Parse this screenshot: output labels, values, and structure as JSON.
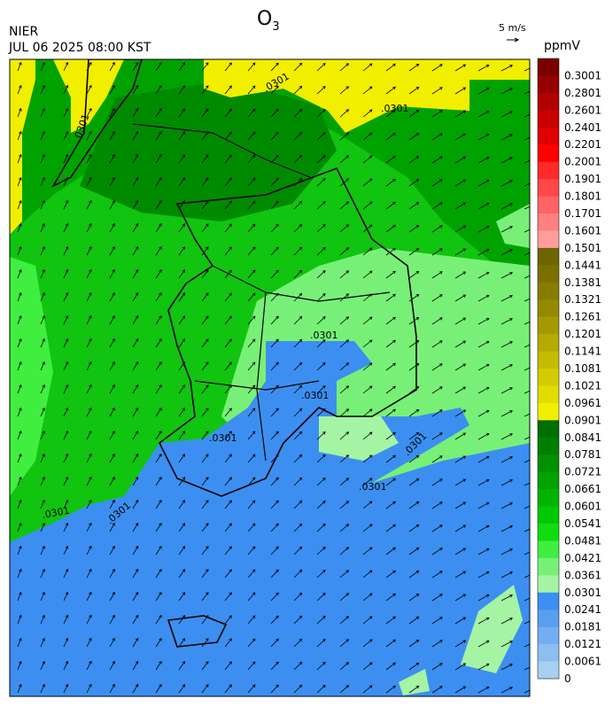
{
  "header": {
    "title_main": "O",
    "title_sub": "3",
    "source": "NIER",
    "datetime": "JUL 06 2025 08:00 KST"
  },
  "wind_scale": {
    "label": "5 m/s"
  },
  "contour_labels": [
    ".0301",
    ".0301",
    ".0301",
    ".0301",
    ".0301",
    ".0301",
    ".0301",
    ".0301",
    ".0301",
    ".0301"
  ],
  "colorbar": {
    "unit": "ppmV",
    "levels": [
      {
        "label": "0.3001",
        "color": "#7a0000"
      },
      {
        "label": "0.2801",
        "color": "#960000"
      },
      {
        "label": "0.2601",
        "color": "#b00000"
      },
      {
        "label": "0.2401",
        "color": "#c80000"
      },
      {
        "label": "0.2201",
        "color": "#e00000"
      },
      {
        "label": "0.2001",
        "color": "#ff0000"
      },
      {
        "label": "0.1901",
        "color": "#ff2a2a"
      },
      {
        "label": "0.1801",
        "color": "#ff4848"
      },
      {
        "label": "0.1701",
        "color": "#ff6464"
      },
      {
        "label": "0.1601",
        "color": "#ff8080"
      },
      {
        "label": "0.1501",
        "color": "#ff9c9c"
      },
      {
        "label": "0.1441",
        "color": "#6e6400"
      },
      {
        "label": "0.1381",
        "color": "#7a7000"
      },
      {
        "label": "0.1321",
        "color": "#877c00"
      },
      {
        "label": "0.1261",
        "color": "#948a00"
      },
      {
        "label": "0.1201",
        "color": "#a49a00"
      },
      {
        "label": "0.1141",
        "color": "#b4aa00"
      },
      {
        "label": "0.1081",
        "color": "#c4bc00"
      },
      {
        "label": "0.1021",
        "color": "#d4cc00"
      },
      {
        "label": "0.0961",
        "color": "#e2dc00"
      },
      {
        "label": "0.0901",
        "color": "#f2ee00"
      },
      {
        "label": "0.0841",
        "color": "#006e00"
      },
      {
        "label": "0.0781",
        "color": "#007f00"
      },
      {
        "label": "0.0721",
        "color": "#009000"
      },
      {
        "label": "0.0661",
        "color": "#00a200"
      },
      {
        "label": "0.0601",
        "color": "#00b400"
      },
      {
        "label": "0.0541",
        "color": "#00c800"
      },
      {
        "label": "0.0481",
        "color": "#10dc10"
      },
      {
        "label": "0.0421",
        "color": "#40ee40"
      },
      {
        "label": "0.0361",
        "color": "#78f078"
      },
      {
        "label": "0.0301",
        "color": "#a4f4a4"
      },
      {
        "label": "0.0241",
        "color": "#3c8ff0"
      },
      {
        "label": "0.0181",
        "color": "#5a9ef0"
      },
      {
        "label": "0.0121",
        "color": "#74aef0"
      },
      {
        "label": "0.0061",
        "color": "#8ebeef"
      },
      {
        "label": "0",
        "color": "#a6d0ee"
      }
    ]
  }
}
